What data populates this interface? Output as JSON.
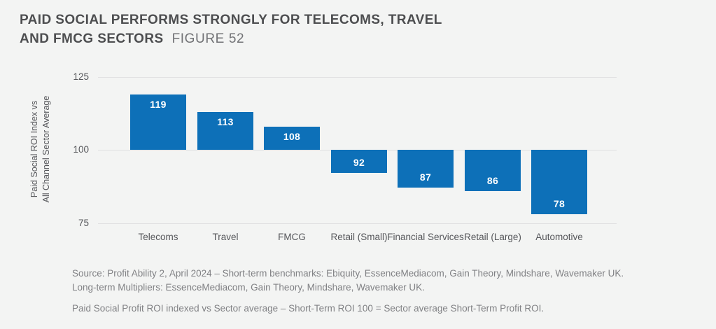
{
  "title": {
    "line1": "PAID SOCIAL PERFORMS STRONGLY FOR TELECOMS, TRAVEL",
    "line2": "AND FMCG SECTORS",
    "figure_label": "FIGURE 52"
  },
  "chart_data": {
    "type": "bar",
    "categories": [
      "Telecoms",
      "Travel",
      "FMCG",
      "Retail (Small)",
      "Financial Services",
      "Retail (Large)",
      "Automotive"
    ],
    "values": [
      119,
      113,
      108,
      92,
      87,
      86,
      78
    ],
    "baseline": 100,
    "yticks": [
      125,
      100,
      75
    ],
    "ylim": [
      75,
      125
    ],
    "ylabel_lines": [
      "Paid Social ROI Index vs",
      "All Channel Sector Average"
    ],
    "bar_color": "#0d70b8",
    "value_label_color": "#ffffff",
    "grid": true,
    "legend": "none"
  },
  "footnotes": {
    "source_line1": "Source: Profit Ability 2, April 2024 – Short-term benchmarks: Ebiquity, EssenceMediacom, Gain Theory, Mindshare, Wavemaker UK.",
    "source_line2": "Long-term Multipliers: EssenceMediacom, Gain Theory, Mindshare, Wavemaker UK.",
    "roi_note": "Paid Social Profit ROI indexed vs Sector average – Short-Term ROI 100 = Sector average Short-Term Profit ROI."
  }
}
